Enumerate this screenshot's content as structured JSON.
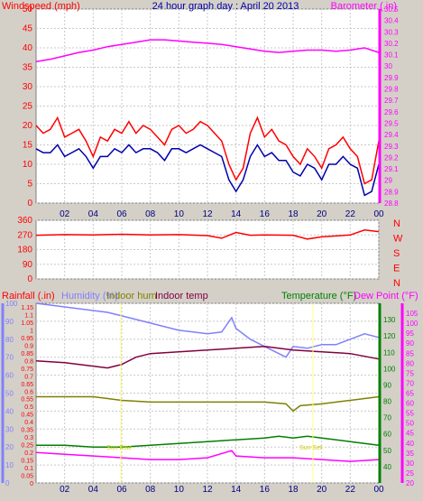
{
  "chart_data": [
    {
      "type": "line",
      "title": "24 hour graph day : April 20 2013",
      "left_label": "Windspeed (mph)",
      "right_label": "Barometer (.in)",
      "x_ticks": [
        "02",
        "04",
        "06",
        "08",
        "10",
        "12",
        "14",
        "16",
        "18",
        "20",
        "22",
        "00"
      ],
      "left_ticks": [
        "0",
        "5",
        "10",
        "15",
        "20",
        "25",
        "30",
        "35",
        "40",
        "45",
        "50"
      ],
      "left_range": [
        0,
        50
      ],
      "right_ticks": [
        "28.8",
        "28.9",
        "29",
        "29.1",
        "29.2",
        "29.3",
        "29.4",
        "29.5",
        "29.6",
        "29.7",
        "29.8",
        "29.9",
        "30",
        "30.1",
        "30.2",
        "30.3",
        "30.4",
        "30.5"
      ],
      "right_range": [
        28.8,
        30.5
      ],
      "series": [
        {
          "key": "barometer",
          "color": "#ff00ff",
          "points": [
            [
              0,
              30.04
            ],
            [
              1,
              30.06
            ],
            [
              2,
              30.09
            ],
            [
              3,
              30.12
            ],
            [
              4,
              30.14
            ],
            [
              5,
              30.17
            ],
            [
              6,
              30.19
            ],
            [
              7,
              30.21
            ],
            [
              8,
              30.23
            ],
            [
              9,
              30.23
            ],
            [
              10,
              30.22
            ],
            [
              11,
              30.21
            ],
            [
              12,
              30.2
            ],
            [
              13,
              30.19
            ],
            [
              14,
              30.17
            ],
            [
              15,
              30.15
            ],
            [
              16,
              30.13
            ],
            [
              17,
              30.12
            ],
            [
              18,
              30.13
            ],
            [
              19,
              30.14
            ],
            [
              20,
              30.14
            ],
            [
              21,
              30.13
            ],
            [
              22,
              30.14
            ],
            [
              23,
              30.16
            ],
            [
              24,
              30.12
            ]
          ]
        },
        {
          "key": "wind_gust",
          "color": "#ff0000",
          "points": [
            [
              0,
              20
            ],
            [
              0.5,
              18
            ],
            [
              1,
              19
            ],
            [
              1.5,
              22
            ],
            [
              2,
              17
            ],
            [
              2.5,
              18
            ],
            [
              3,
              19
            ],
            [
              3.5,
              16
            ],
            [
              4,
              12
            ],
            [
              4.5,
              17
            ],
            [
              5,
              16
            ],
            [
              5.5,
              19
            ],
            [
              6,
              18
            ],
            [
              6.5,
              21
            ],
            [
              7,
              18
            ],
            [
              7.5,
              20
            ],
            [
              8,
              19
            ],
            [
              8.5,
              17
            ],
            [
              9,
              15
            ],
            [
              9.5,
              19
            ],
            [
              10,
              20
            ],
            [
              10.5,
              18
            ],
            [
              11,
              19
            ],
            [
              11.5,
              21
            ],
            [
              12,
              20
            ],
            [
              12.5,
              18
            ],
            [
              13,
              16
            ],
            [
              13.5,
              10
            ],
            [
              14,
              6
            ],
            [
              14.5,
              9
            ],
            [
              15,
              18
            ],
            [
              15.5,
              22
            ],
            [
              16,
              17
            ],
            [
              16.5,
              19
            ],
            [
              17,
              16
            ],
            [
              17.5,
              15
            ],
            [
              18,
              12
            ],
            [
              18.5,
              10
            ],
            [
              19,
              14
            ],
            [
              19.5,
              12
            ],
            [
              20,
              9
            ],
            [
              20.5,
              14
            ],
            [
              21,
              15
            ],
            [
              21.5,
              17
            ],
            [
              22,
              14
            ],
            [
              22.5,
              12
            ],
            [
              23,
              5
            ],
            [
              23.5,
              6
            ],
            [
              24,
              16
            ]
          ]
        },
        {
          "key": "wind_avg",
          "color": "#0000aa",
          "points": [
            [
              0,
              14
            ],
            [
              0.5,
              13
            ],
            [
              1,
              13
            ],
            [
              1.5,
              15
            ],
            [
              2,
              12
            ],
            [
              2.5,
              13
            ],
            [
              3,
              14
            ],
            [
              3.5,
              12
            ],
            [
              4,
              9
            ],
            [
              4.5,
              12
            ],
            [
              5,
              12
            ],
            [
              5.5,
              14
            ],
            [
              6,
              13
            ],
            [
              6.5,
              15
            ],
            [
              7,
              13
            ],
            [
              7.5,
              14
            ],
            [
              8,
              14
            ],
            [
              8.5,
              13
            ],
            [
              9,
              11
            ],
            [
              9.5,
              14
            ],
            [
              10,
              14
            ],
            [
              10.5,
              13
            ],
            [
              11,
              14
            ],
            [
              11.5,
              15
            ],
            [
              12,
              14
            ],
            [
              12.5,
              13
            ],
            [
              13,
              12
            ],
            [
              13.5,
              6
            ],
            [
              14,
              3
            ],
            [
              14.5,
              6
            ],
            [
              15,
              12
            ],
            [
              15.5,
              15
            ],
            [
              16,
              12
            ],
            [
              16.5,
              13
            ],
            [
              17,
              11
            ],
            [
              17.5,
              11
            ],
            [
              18,
              8
            ],
            [
              18.5,
              7
            ],
            [
              19,
              10
            ],
            [
              19.5,
              9
            ],
            [
              20,
              6
            ],
            [
              20.5,
              10
            ],
            [
              21,
              10
            ],
            [
              21.5,
              12
            ],
            [
              22,
              10
            ],
            [
              22.5,
              9
            ],
            [
              23,
              2
            ],
            [
              23.5,
              3
            ],
            [
              24,
              10
            ]
          ]
        }
      ]
    },
    {
      "type": "line",
      "left_ticks": [
        "0",
        "90",
        "180",
        "270",
        "360"
      ],
      "left_range": [
        0,
        360
      ],
      "right_ticks": [
        "N",
        "W",
        "S",
        "E",
        "N"
      ],
      "series": [
        {
          "key": "wind_dir",
          "color": "#ff0000",
          "points": [
            [
              0,
              268
            ],
            [
              2,
              272
            ],
            [
              4,
              270
            ],
            [
              6,
              274
            ],
            [
              8,
              270
            ],
            [
              10,
              272
            ],
            [
              12,
              266
            ],
            [
              13,
              250
            ],
            [
              14,
              285
            ],
            [
              15,
              268
            ],
            [
              16,
              270
            ],
            [
              18,
              268
            ],
            [
              19,
              245
            ],
            [
              20,
              258
            ],
            [
              22,
              270
            ],
            [
              23,
              300
            ],
            [
              24,
              290
            ]
          ]
        }
      ]
    },
    {
      "type": "line",
      "legend": [
        "Rainfall (.in)",
        "Humidity (%)",
        "Indoor hum",
        "Indoor temp",
        "Temperature (°F)",
        "Dew Point (°F)"
      ],
      "rain_ticks": [
        "0",
        "0.05",
        "0.1",
        "0.15",
        "0.2",
        "0.25",
        "0.3",
        "0.35",
        "0.4",
        "0.45",
        "0.5",
        "0.55",
        "0.6",
        "0.65",
        "0.7",
        "0.75",
        "0.8",
        "0.85",
        "0.9",
        "0.95",
        "1",
        "1.05",
        "1.1",
        "1.15"
      ],
      "hum_ticks": [
        "0",
        "10",
        "20",
        "30",
        "40",
        "50",
        "60",
        "70",
        "80",
        "90",
        "100"
      ],
      "temp_ticks": [
        "40",
        "50",
        "60",
        "70",
        "80",
        "90",
        "100",
        "110",
        "120",
        "130"
      ],
      "dew_ticks": [
        "20",
        "25",
        "30",
        "35",
        "40",
        "45",
        "50",
        "55",
        "60",
        "65",
        "70",
        "75",
        "80",
        "85",
        "90",
        "95",
        "100",
        "105"
      ],
      "hum_range": [
        0,
        100
      ],
      "temp_range": [
        30,
        140
      ],
      "sunrise_label": "Sun Rise",
      "sunset_label": "Sun Set",
      "series": [
        {
          "key": "humidity",
          "color": "#8080ff",
          "axis": "hum",
          "points": [
            [
              0,
              100
            ],
            [
              2,
              98
            ],
            [
              4,
              96
            ],
            [
              5,
              95
            ],
            [
              6,
              93
            ],
            [
              7,
              91
            ],
            [
              8,
              89
            ],
            [
              9,
              87
            ],
            [
              10,
              85
            ],
            [
              11,
              84
            ],
            [
              12,
              83
            ],
            [
              13,
              84
            ],
            [
              13.7,
              92
            ],
            [
              14,
              86
            ],
            [
              15,
              80
            ],
            [
              16,
              76
            ],
            [
              17,
              72
            ],
            [
              17.5,
              70
            ],
            [
              18,
              76
            ],
            [
              19,
              75
            ],
            [
              20,
              77
            ],
            [
              21,
              77
            ],
            [
              22,
              80
            ],
            [
              23,
              83
            ],
            [
              24,
              81
            ]
          ]
        },
        {
          "key": "indoor_temp",
          "color": "#800040",
          "axis": "hum",
          "points": [
            [
              0,
              68
            ],
            [
              2,
              67
            ],
            [
              4,
              65
            ],
            [
              5,
              64
            ],
            [
              6,
              66
            ],
            [
              7,
              70
            ],
            [
              8,
              72
            ],
            [
              10,
              73
            ],
            [
              12,
              74
            ],
            [
              14,
              75
            ],
            [
              16,
              76
            ],
            [
              18,
              74
            ],
            [
              20,
              73
            ],
            [
              22,
              72
            ],
            [
              24,
              69
            ]
          ]
        },
        {
          "key": "indoor_hum",
          "color": "#808000",
          "axis": "hum",
          "points": [
            [
              0,
              48
            ],
            [
              4,
              48
            ],
            [
              5,
              47
            ],
            [
              6,
              46
            ],
            [
              8,
              45
            ],
            [
              12,
              45
            ],
            [
              16,
              45
            ],
            [
              17.5,
              44
            ],
            [
              18,
              40
            ],
            [
              18.5,
              43
            ],
            [
              20,
              44
            ],
            [
              22,
              46
            ],
            [
              24,
              48
            ]
          ]
        },
        {
          "key": "temperature",
          "color": "#008000",
          "axis": "hum",
          "points": [
            [
              0,
              21
            ],
            [
              2,
              21
            ],
            [
              4,
              20
            ],
            [
              6,
              20
            ],
            [
              8,
              21
            ],
            [
              10,
              22
            ],
            [
              12,
              23
            ],
            [
              14,
              24
            ],
            [
              16,
              25
            ],
            [
              17,
              26
            ],
            [
              18,
              25
            ],
            [
              19,
              26
            ],
            [
              20,
              25
            ],
            [
              22,
              23
            ],
            [
              24,
              21
            ]
          ]
        },
        {
          "key": "dew_point",
          "color": "#ff00ff",
          "axis": "hum",
          "points": [
            [
              0,
              17
            ],
            [
              2,
              16
            ],
            [
              4,
              15
            ],
            [
              6,
              14
            ],
            [
              8,
              13
            ],
            [
              10,
              13
            ],
            [
              12,
              14
            ],
            [
              13.7,
              18
            ],
            [
              14,
              15
            ],
            [
              16,
              14
            ],
            [
              18,
              14
            ],
            [
              20,
              13
            ],
            [
              22,
              12
            ],
            [
              24,
              13
            ]
          ]
        }
      ]
    }
  ]
}
